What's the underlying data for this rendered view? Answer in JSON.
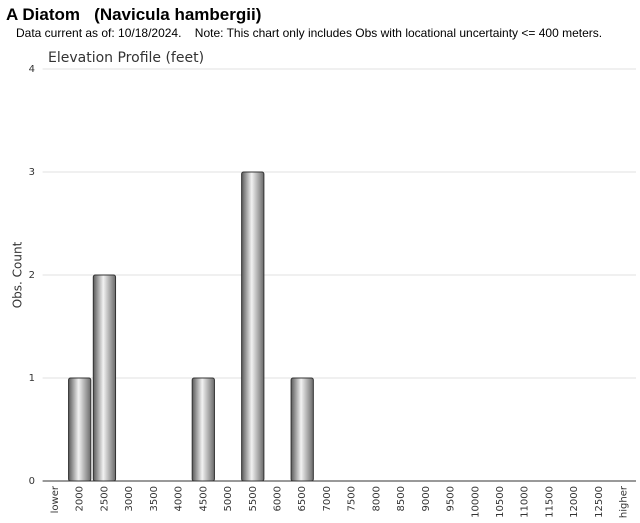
{
  "header": {
    "title": "A Diatom   (Navicula hambergii)",
    "subtitle": "Data current as of: 10/18/2024.    Note: This chart only includes Obs with locational uncertainty <= 400 meters."
  },
  "chart_data": {
    "type": "bar",
    "title": "Elevation Profile (feet)",
    "y_label": "Obs. Count",
    "categories": [
      "lower",
      "2000",
      "2500",
      "3000",
      "3500",
      "4000",
      "4500",
      "5000",
      "5500",
      "6000",
      "6500",
      "7000",
      "7500",
      "8000",
      "8500",
      "9000",
      "9500",
      "10000",
      "10500",
      "11000",
      "11500",
      "12000",
      "12500",
      "higher"
    ],
    "values": [
      0,
      1,
      2,
      0,
      0,
      0,
      1,
      0,
      3,
      0,
      1,
      0,
      0,
      0,
      0,
      0,
      0,
      0,
      0,
      0,
      0,
      0,
      0,
      0
    ],
    "color": "#9a9a9a",
    "ylim": [
      0,
      4
    ],
    "yticks": [
      0,
      1,
      2,
      3,
      4
    ],
    "grid": true
  }
}
